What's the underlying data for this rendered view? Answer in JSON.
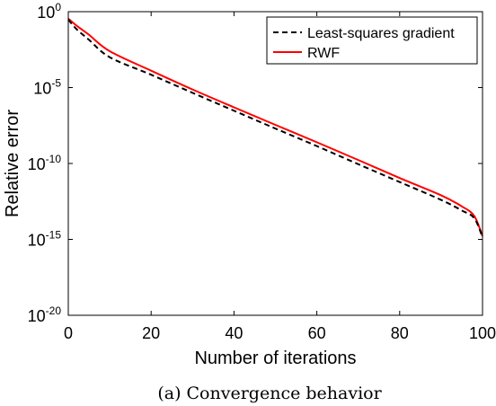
{
  "chart_data": {
    "type": "line",
    "title": "",
    "caption": "(a) Convergence behavior",
    "xlabel": "Number of iterations",
    "ylabel": "Relative error",
    "xlim": [
      0,
      100
    ],
    "ylim": [
      1e-20,
      1
    ],
    "yscale": "log",
    "grid": false,
    "legend_position": "top-right",
    "x_ticks": [
      "0",
      "20",
      "40",
      "60",
      "80",
      "100"
    ],
    "x_tick_values": [
      0,
      20,
      40,
      60,
      80,
      100
    ],
    "y_ticks": [
      {
        "base": "10",
        "exp": "0",
        "value": 1
      },
      {
        "base": "10",
        "exp": "-5",
        "value": 1e-05
      },
      {
        "base": "10",
        "exp": "-10",
        "value": 1e-10
      },
      {
        "base": "10",
        "exp": "-15",
        "value": 1e-15
      },
      {
        "base": "10",
        "exp": "-20",
        "value": 1e-20
      }
    ],
    "series": [
      {
        "name": "Least-squares gradient",
        "color": "#000000",
        "style": "dashed",
        "x": [
          0,
          2,
          5,
          10,
          20,
          30,
          40,
          50,
          60,
          70,
          80,
          90,
          95,
          98,
          100
        ],
        "y": [
          0.3,
          0.07,
          0.014,
          0.001,
          7e-05,
          4.5e-06,
          3e-07,
          2e-08,
          1.4e-09,
          9e-11,
          6e-12,
          4e-13,
          8e-14,
          2.5e-14,
          1.4e-15
        ]
      },
      {
        "name": "RWF",
        "color": "#ff0000",
        "style": "solid",
        "x": [
          0,
          2,
          5,
          10,
          20,
          30,
          40,
          50,
          60,
          70,
          80,
          90,
          95,
          98,
          100
        ],
        "y": [
          0.35,
          0.12,
          0.03,
          0.0025,
          0.00013,
          7.5e-06,
          5e-07,
          3.5e-08,
          2.5e-09,
          1.7e-10,
          1.1e-11,
          8e-13,
          1.5e-13,
          3.5e-14,
          1.6e-15
        ]
      }
    ]
  }
}
